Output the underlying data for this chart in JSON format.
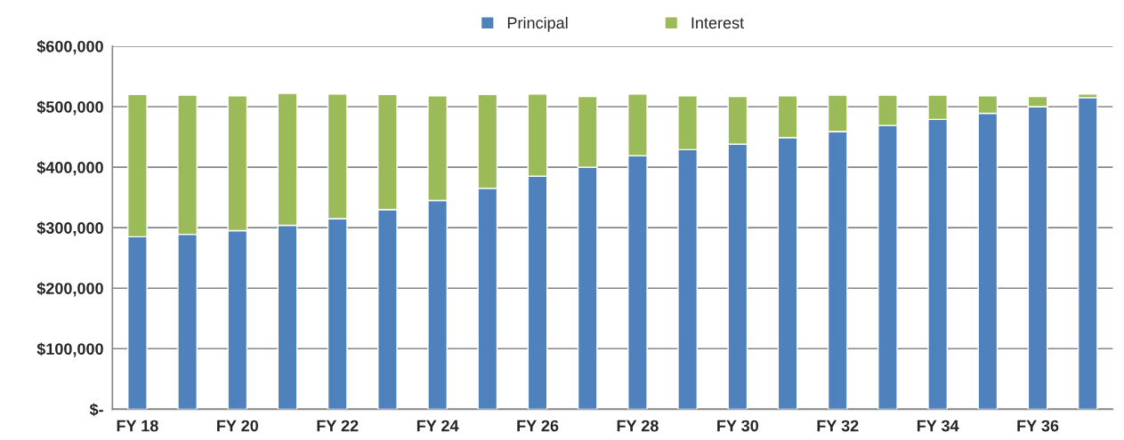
{
  "chart_data": {
    "type": "bar",
    "stacked": true,
    "categories": [
      "FY 18",
      null,
      "FY 20",
      null,
      "FY 22",
      null,
      "FY 24",
      null,
      "FY 26",
      null,
      "FY 28",
      null,
      "FY 30",
      null,
      "FY 32",
      null,
      "FY 34",
      null,
      "FY 36",
      null
    ],
    "series": [
      {
        "name": "Principal",
        "color": "#4f81bd",
        "values": [
          285000,
          289000,
          295000,
          304000,
          315000,
          330000,
          345000,
          365000,
          385000,
          400000,
          419000,
          429000,
          438000,
          449000,
          459000,
          469000,
          479000,
          489000,
          500000,
          515000
        ]
      },
      {
        "name": "Interest",
        "color": "#9bbb59",
        "values": [
          235000,
          230000,
          223000,
          218000,
          206000,
          190000,
          173000,
          155000,
          136000,
          117000,
          102000,
          89000,
          79000,
          69000,
          60000,
          50000,
          40000,
          29000,
          17000,
          6000
        ]
      }
    ],
    "ylim": [
      0,
      600000
    ],
    "yticks": [
      {
        "value": 0,
        "label": "$-"
      },
      {
        "value": 100000,
        "label": "$100,000"
      },
      {
        "value": 200000,
        "label": "$200,000"
      },
      {
        "value": 300000,
        "label": "$300,000"
      },
      {
        "value": 400000,
        "label": "$400,000"
      },
      {
        "value": 500000,
        "label": "$500,000"
      },
      {
        "value": 600000,
        "label": "$600,000"
      }
    ],
    "grid": "y",
    "legend": "top"
  }
}
